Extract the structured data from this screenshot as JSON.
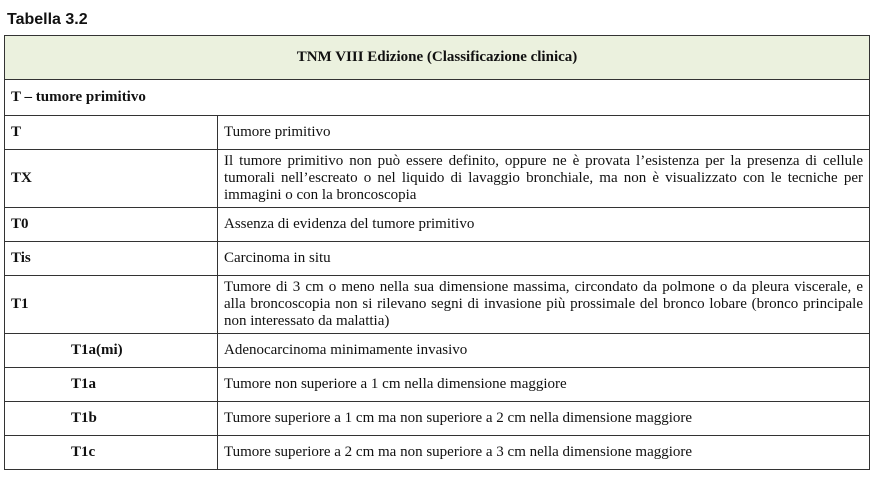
{
  "title": "Tabella 3.2",
  "table": {
    "header": "TNM VIII Edizione (Classificazione clinica)",
    "section": "T – tumore primitivo",
    "rows": [
      {
        "code": "T",
        "desc": "Tumore primitivo",
        "sub": false
      },
      {
        "code": "TX",
        "desc": "Il tumore primitivo non può essere definito, oppure ne è provata l’esistenza per la presenza di cellule tumorali nell’escreato o nel liquido di lavaggio bronchiale, ma non è visualizzato con le tecniche per immagini o con la broncoscopia",
        "sub": false
      },
      {
        "code": "T0",
        "desc": "Assenza di evidenza del tumore primitivo",
        "sub": false
      },
      {
        "code": "Tis",
        "desc": "Carcinoma in situ",
        "sub": false
      },
      {
        "code": "T1",
        "desc": "Tumore di 3 cm o meno nella sua dimensione massima, circondato da polmone o da pleura viscerale, e alla broncoscopia non si rilevano segni di invasione più prossimale del bronco lobare (bronco principale non interessato da malattia)",
        "sub": false
      },
      {
        "code": "T1a(mi)",
        "desc": "Adenocarcinoma minimamente invasivo",
        "sub": true
      },
      {
        "code": "T1a",
        "desc": "Tumore non superiore a 1 cm nella dimensione maggiore",
        "sub": true
      },
      {
        "code": "T1b",
        "desc": "Tumore superiore a 1 cm ma non superiore a 2 cm nella dimensione maggiore",
        "sub": true
      },
      {
        "code": "T1c",
        "desc": "Tumore superiore a 2 cm ma non superiore a 3 cm nella dimensione maggiore",
        "sub": true
      }
    ],
    "header_bg": "#ebf1de"
  }
}
